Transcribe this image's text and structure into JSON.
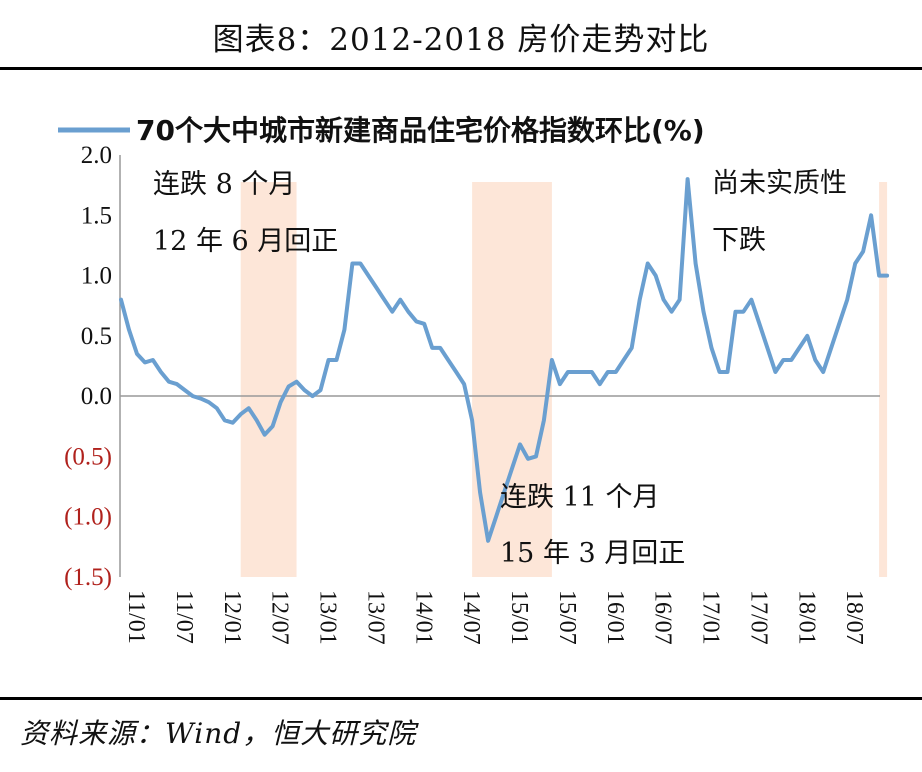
{
  "title": "图表8：2012-2018 房价走势对比",
  "source": "资料来源：Wind，恒大研究院",
  "chart_data": {
    "type": "line",
    "legend_position": "top",
    "series": [
      {
        "name": "70个大中城市新建商品住宅价格指数环比(%)",
        "color": "#6a9fd0",
        "values": [
          0.8,
          0.55,
          0.35,
          0.28,
          0.3,
          0.2,
          0.12,
          0.1,
          0.05,
          0.0,
          -0.02,
          -0.05,
          -0.1,
          -0.2,
          -0.22,
          -0.15,
          -0.1,
          -0.2,
          -0.32,
          -0.25,
          -0.05,
          0.08,
          0.12,
          0.05,
          0.0,
          0.05,
          0.3,
          0.3,
          0.55,
          1.1,
          1.1,
          1.0,
          0.9,
          0.8,
          0.7,
          0.8,
          0.7,
          0.62,
          0.6,
          0.4,
          0.4,
          0.3,
          0.2,
          0.1,
          -0.2,
          -0.8,
          -1.2,
          -1.0,
          -0.8,
          -0.6,
          -0.4,
          -0.52,
          -0.5,
          -0.2,
          0.3,
          0.1,
          0.2,
          0.2,
          0.2,
          0.2,
          0.1,
          0.2,
          0.2,
          0.3,
          0.4,
          0.8,
          1.1,
          1.0,
          0.8,
          0.7,
          0.8,
          1.8,
          1.1,
          0.7,
          0.4,
          0.2,
          0.2,
          0.7,
          0.7,
          0.8,
          0.6,
          0.4,
          0.2,
          0.3,
          0.3,
          0.4,
          0.5,
          0.3,
          0.2,
          0.4,
          0.6,
          0.8,
          1.1,
          1.2,
          1.5,
          1.0,
          1.0
        ]
      }
    ],
    "x_tick_labels": [
      "11/01",
      "11/07",
      "12/01",
      "12/07",
      "13/01",
      "13/07",
      "14/01",
      "14/07",
      "15/01",
      "15/07",
      "16/01",
      "16/07",
      "17/01",
      "17/07",
      "18/01",
      "18/07"
    ],
    "x_tick_month_index": [
      0,
      6,
      12,
      18,
      24,
      30,
      36,
      42,
      48,
      54,
      60,
      66,
      72,
      78,
      84,
      90
    ],
    "y_tick_labels": [
      "2.0",
      "1.5",
      "1.0",
      "0.5",
      "0.0",
      "(0.5)",
      "(1.0)",
      "(1.5)"
    ],
    "y_tick_values": [
      2.0,
      1.5,
      1.0,
      0.5,
      0.0,
      -0.5,
      -1.0,
      -1.5
    ],
    "ylim": [
      -1.5,
      2.0
    ],
    "negative_label_color": "#b0211c",
    "shaded_periods": [
      {
        "start_index": 15,
        "end_index": 22
      },
      {
        "start_index": 44,
        "end_index": 54
      },
      {
        "start_index": 95,
        "end_index": 96
      }
    ],
    "shade_color": "#fde6d8",
    "annotations": [
      {
        "lines": [
          "连跌 8 个月",
          "12 年 6 月回正"
        ]
      },
      {
        "lines": [
          "连跌 11 个月",
          "15 年 3 月回正"
        ]
      },
      {
        "lines": [
          "尚未实质性",
          "下跌"
        ]
      }
    ]
  }
}
